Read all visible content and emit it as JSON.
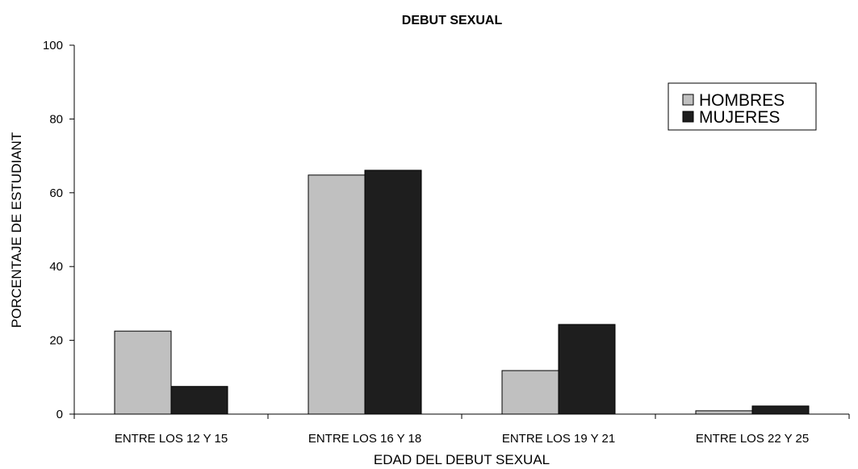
{
  "chart_data": {
    "type": "bar",
    "title": "DEBUT SEXUAL",
    "xlabel": "EDAD DEL DEBUT SEXUAL",
    "ylabel": "PORCENTAJE DE ESTUDIANT",
    "categories": [
      "ENTRE LOS 12 Y 15",
      "ENTRE LOS 16 Y 18",
      "ENTRE LOS 19 Y 21",
      "ENTRE LOS 22 Y 25"
    ],
    "series": [
      {
        "name": "HOMBRES",
        "color": "#c0c0c0",
        "values": [
          22.5,
          64.8,
          11.8,
          0.9
        ]
      },
      {
        "name": "MUJERES",
        "color": "#1e1e1e",
        "values": [
          7.5,
          66.1,
          24.3,
          2.2
        ]
      }
    ],
    "ylim": [
      0,
      100
    ],
    "yticks": [
      "0",
      "20",
      "40",
      "60",
      "80",
      "100"
    ],
    "grid": false,
    "legend_position": "top-right"
  }
}
